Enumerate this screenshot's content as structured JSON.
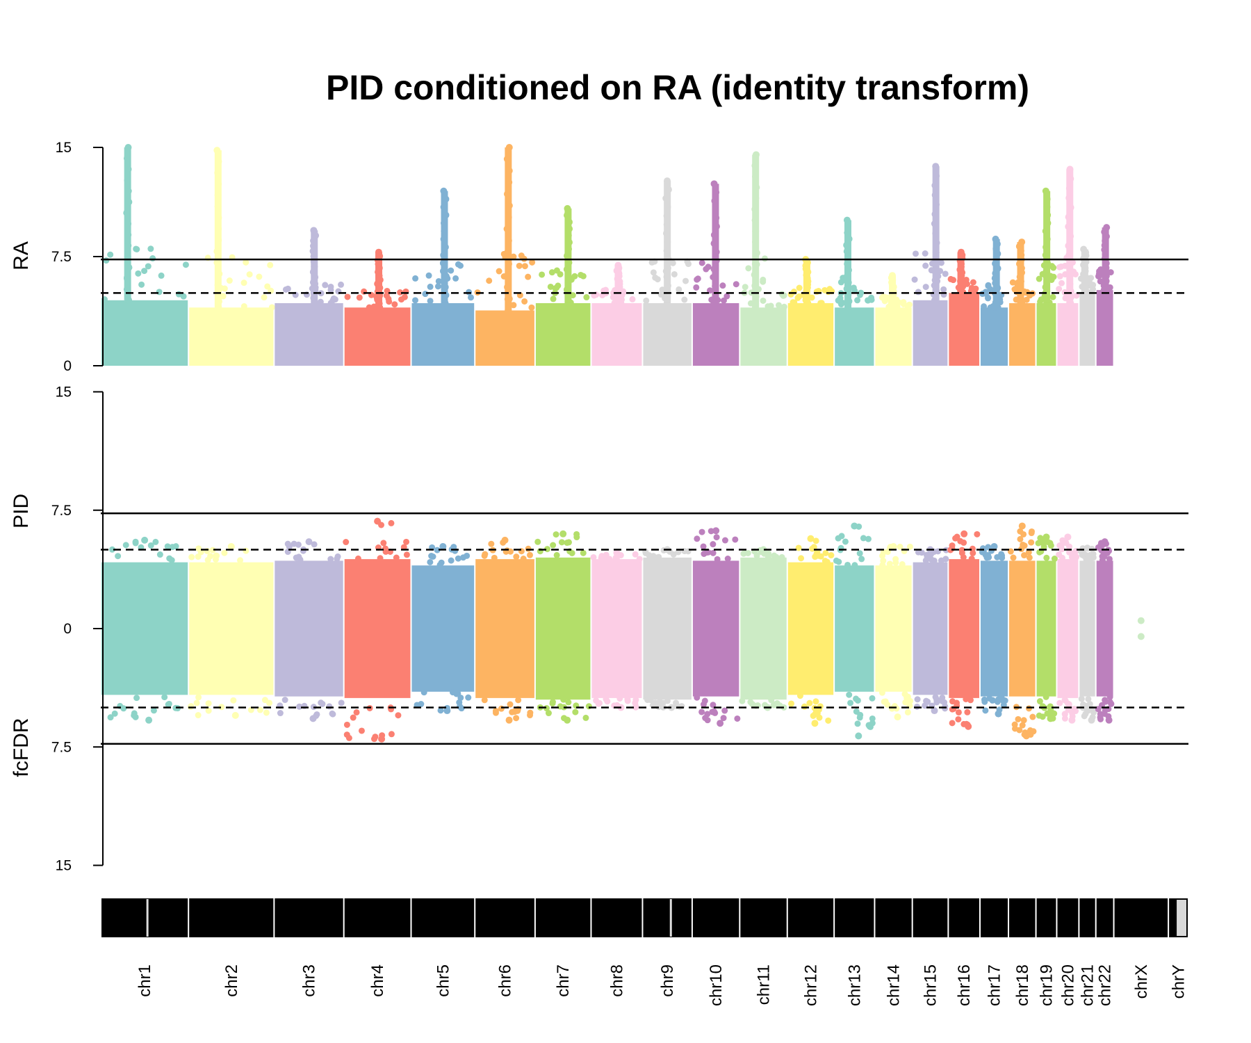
{
  "chart_data": {
    "type": "scatter",
    "title": "PID conditioned on RA (identity transform)",
    "panels": [
      {
        "id": "top",
        "ylabel": "RA",
        "yticks": [
          {
            "value": 0,
            "label": "0"
          },
          {
            "value": 7.5,
            "label": "7.5"
          },
          {
            "value": 15,
            "label": "15"
          }
        ],
        "ylim": [
          0,
          15
        ],
        "solid_line": 7.3,
        "dashed_line": 5
      },
      {
        "id": "bottom",
        "ylabel_up": "PID",
        "ylabel_down": "fcFDR",
        "yticks": [
          {
            "value": 15,
            "label": "15"
          },
          {
            "value": 7.5,
            "label": "7.5"
          },
          {
            "value": 0,
            "label": "0"
          },
          {
            "value": -7.5,
            "label": "7.5"
          },
          {
            "value": -15,
            "label": "15"
          }
        ],
        "ylim": [
          -15,
          15
        ],
        "solid_lines": [
          7.3,
          -7.3
        ],
        "dashed_lines": [
          5,
          -5
        ]
      }
    ],
    "chromosomes": [
      {
        "name": "chr1",
        "color": "#8DD3C7",
        "size": 249,
        "ra_max": 15.0,
        "ra_base": 4.5,
        "pid_up": 5.6,
        "pid_down": 5.8,
        "pid_base": 4.2
      },
      {
        "name": "chr2",
        "color": "#FFFFB3",
        "size": 243,
        "ra_max": 14.8,
        "ra_base": 4.0,
        "pid_up": 5.2,
        "pid_down": 5.5,
        "pid_base": 4.2
      },
      {
        "name": "chr3",
        "color": "#BEBADA",
        "size": 198,
        "ra_max": 9.3,
        "ra_base": 4.3,
        "pid_up": 5.5,
        "pid_down": 5.7,
        "pid_base": 4.3
      },
      {
        "name": "chr4",
        "color": "#FB8072",
        "size": 191,
        "ra_max": 7.8,
        "ra_base": 4.0,
        "pid_up": 6.8,
        "pid_down": 7.0,
        "pid_base": 4.4
      },
      {
        "name": "chr5",
        "color": "#80B1D3",
        "size": 181,
        "ra_max": 12.0,
        "ra_base": 4.3,
        "pid_up": 5.2,
        "pid_down": 5.2,
        "pid_base": 4.0
      },
      {
        "name": "chr6",
        "color": "#FDB462",
        "size": 171,
        "ra_max": 15.0,
        "ra_base": 3.8,
        "pid_up": 5.6,
        "pid_down": 5.8,
        "pid_base": 4.4
      },
      {
        "name": "chr7",
        "color": "#B3DE69",
        "size": 159,
        "ra_max": 10.8,
        "ra_base": 4.3,
        "pid_up": 6.0,
        "pid_down": 5.8,
        "pid_base": 4.5
      },
      {
        "name": "chr8",
        "color": "#FCCDE5",
        "size": 146,
        "ra_max": 6.9,
        "ra_base": 4.3,
        "pid_up": 4.8,
        "pid_down": 5.0,
        "pid_base": 4.4
      },
      {
        "name": "chr9",
        "color": "#D9D9D9",
        "size": 141,
        "ra_max": 12.7,
        "ra_base": 4.3,
        "pid_up": 5.0,
        "pid_down": 5.0,
        "pid_base": 4.5
      },
      {
        "name": "chr10",
        "color": "#BC80BD",
        "size": 135,
        "ra_max": 12.5,
        "ra_base": 4.3,
        "pid_up": 6.2,
        "pid_down": 6.0,
        "pid_base": 4.3
      },
      {
        "name": "chr11",
        "color": "#CCEBC5",
        "size": 135,
        "ra_max": 14.5,
        "ra_base": 4.0,
        "pid_up": 5.0,
        "pid_down": 5.0,
        "pid_base": 4.5
      },
      {
        "name": "chr12",
        "color": "#FFED6F",
        "size": 133,
        "ra_max": 7.3,
        "ra_base": 4.3,
        "pid_up": 5.7,
        "pid_down": 6.0,
        "pid_base": 4.2
      },
      {
        "name": "chr13",
        "color": "#8DD3C7",
        "size": 115,
        "ra_max": 10.0,
        "ra_base": 4.0,
        "pid_up": 6.5,
        "pid_down": 6.8,
        "pid_base": 4.0
      },
      {
        "name": "chr14",
        "color": "#FFFFB3",
        "size": 107,
        "ra_max": 6.2,
        "ra_base": 4.0,
        "pid_up": 5.2,
        "pid_down": 5.6,
        "pid_base": 4.0
      },
      {
        "name": "chr15",
        "color": "#BEBADA",
        "size": 102,
        "ra_max": 13.7,
        "ra_base": 4.5,
        "pid_up": 5.0,
        "pid_down": 5.2,
        "pid_base": 4.2
      },
      {
        "name": "chr16",
        "color": "#FB8072",
        "size": 90,
        "ra_max": 7.8,
        "ra_base": 5.0,
        "pid_up": 6.0,
        "pid_down": 6.2,
        "pid_base": 4.4
      },
      {
        "name": "chr17",
        "color": "#80B1D3",
        "size": 81,
        "ra_max": 8.7,
        "ra_base": 4.0,
        "pid_up": 5.2,
        "pid_down": 5.4,
        "pid_base": 4.3
      },
      {
        "name": "chr18",
        "color": "#FDB462",
        "size": 78,
        "ra_max": 8.5,
        "ra_base": 4.3,
        "pid_up": 6.5,
        "pid_down": 6.8,
        "pid_base": 4.3
      },
      {
        "name": "chr19",
        "color": "#B3DE69",
        "size": 59,
        "ra_max": 12.0,
        "ra_base": 4.3,
        "pid_up": 5.8,
        "pid_down": 5.7,
        "pid_base": 4.3
      },
      {
        "name": "chr20",
        "color": "#FCCDE5",
        "size": 63,
        "ra_max": 13.5,
        "ra_base": 4.3,
        "pid_up": 5.8,
        "pid_down": 5.8,
        "pid_base": 4.4
      },
      {
        "name": "chr21",
        "color": "#D9D9D9",
        "size": 48,
        "ra_max": 8.0,
        "ra_base": 5.0,
        "pid_up": 5.1,
        "pid_down": 5.8,
        "pid_base": 4.3
      },
      {
        "name": "chr22",
        "color": "#BC80BD",
        "size": 51,
        "ra_max": 9.5,
        "ra_base": 5.2,
        "pid_up": 5.5,
        "pid_down": 5.8,
        "pid_base": 4.3
      },
      {
        "name": "chrX",
        "color": "#CCEBC5",
        "size": 155,
        "ra_max": 0,
        "ra_base": 0,
        "pid_up": 0.5,
        "pid_down": 0.5,
        "pid_base": 0
      },
      {
        "name": "chrY",
        "color": "#D9D9D9",
        "size": 57,
        "ra_max": 0,
        "ra_base": 0,
        "pid_up": 0,
        "pid_down": 0,
        "pid_base": 0
      }
    ]
  }
}
